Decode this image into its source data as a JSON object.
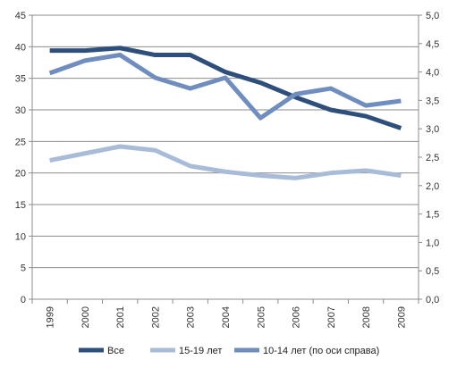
{
  "chart_data": {
    "type": "line",
    "x": [
      "1999",
      "2000",
      "2001",
      "2002",
      "2003",
      "2004",
      "2005",
      "2006",
      "2007",
      "2008",
      "2009"
    ],
    "y_left_ticks": [
      "0",
      "5",
      "10",
      "15",
      "20",
      "25",
      "30",
      "35",
      "40",
      "45"
    ],
    "y_right_ticks": [
      "0,0",
      "0,5",
      "1,0",
      "1,5",
      "2,0",
      "2,5",
      "3,0",
      "3,5",
      "4,0",
      "4,5",
      "5,0"
    ],
    "ylim_left": [
      0,
      45
    ],
    "ylim_right": [
      0,
      5
    ],
    "grid": true,
    "legend_position": "bottom",
    "series": [
      {
        "name": "Все",
        "axis": "left",
        "color": "#2E4E7C",
        "values": [
          39.4,
          39.4,
          39.8,
          38.7,
          38.7,
          36.0,
          34.3,
          32.0,
          30.0,
          29.0,
          27.1
        ]
      },
      {
        "name": "15-19 лет",
        "axis": "left",
        "color": "#A8BCD8",
        "values": [
          22.0,
          23.1,
          24.2,
          23.6,
          21.1,
          20.2,
          19.6,
          19.2,
          20.0,
          20.4,
          19.6
        ]
      },
      {
        "name": "10-14 лет (по оси справа)",
        "axis": "right",
        "color": "#6F8EBF",
        "values": [
          3.98,
          4.2,
          4.3,
          3.9,
          3.71,
          3.9,
          3.19,
          3.61,
          3.71,
          3.41,
          3.49
        ]
      }
    ]
  }
}
